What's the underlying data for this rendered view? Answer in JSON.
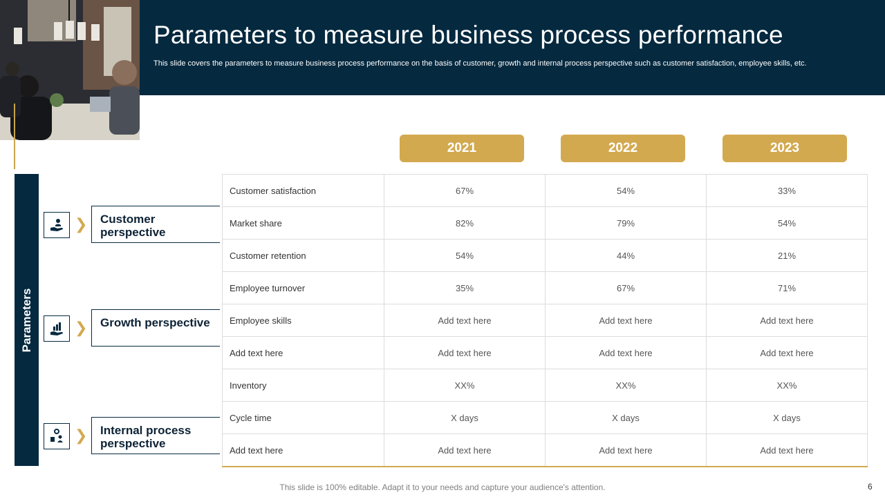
{
  "header": {
    "title": "Parameters to measure business process performance",
    "subtitle": "This slide covers the parameters to measure business process performance on the basis of customer, growth and internal process perspective such as customer satisfaction, employee skills, etc."
  },
  "years": [
    "2021",
    "2022",
    "2023"
  ],
  "sidebar": {
    "label": "Parameters",
    "perspectives": [
      {
        "label": "Customer perspective",
        "icon": "hand-user-icon"
      },
      {
        "label": "Growth perspective",
        "icon": "hand-chart-icon"
      },
      {
        "label": "Internal process perspective",
        "icon": "process-team-icon"
      }
    ]
  },
  "table": {
    "rows": [
      {
        "label": "Customer satisfaction",
        "values": [
          "67%",
          "54%",
          "33%"
        ]
      },
      {
        "label": "Market share",
        "values": [
          "82%",
          "79%",
          "54%"
        ]
      },
      {
        "label": "Customer retention",
        "values": [
          "54%",
          "44%",
          "21%"
        ]
      },
      {
        "label": "Employee turnover",
        "values": [
          "35%",
          "67%",
          "71%"
        ]
      },
      {
        "label": "Employee skills",
        "values": [
          "Add text here",
          "Add text here",
          "Add text here"
        ]
      },
      {
        "label": "Add text here",
        "values": [
          "Add text here",
          "Add text here",
          "Add text here"
        ]
      },
      {
        "label": "Inventory",
        "values": [
          "XX%",
          "XX%",
          "XX%"
        ]
      },
      {
        "label": "Cycle time",
        "values": [
          "X days",
          "X days",
          "X days"
        ]
      },
      {
        "label": "Add text here",
        "values": [
          "Add text here",
          "Add text here",
          "Add text here"
        ]
      }
    ]
  },
  "footer": {
    "note": "This slide is 100% editable. Adapt it to your needs and capture your audience's attention.",
    "page_number": "6"
  },
  "colors": {
    "navy": "#05293f",
    "gold": "#d3a94f"
  }
}
